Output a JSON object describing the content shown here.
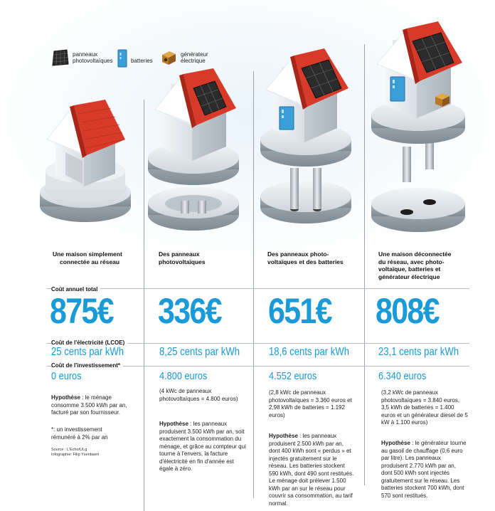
{
  "legend": [
    {
      "icon": "solar-panel-icon",
      "label_l1": "panneaux",
      "label_l2": "photovoltaïques"
    },
    {
      "icon": "battery-icon",
      "label_l1": "batteries",
      "label_l2": ""
    },
    {
      "icon": "generator-icon",
      "label_l1": "générateur",
      "label_l2": "électrique"
    }
  ],
  "labels": {
    "annual_cost": "Coût annuel total",
    "lcoe": "Coût de l'électricité (LCOE)",
    "investment": "Coût de l'investissement*"
  },
  "columns": [
    {
      "caption_l1": "Une maison simplement",
      "caption_l2": "connectée au réseau",
      "caption_l3": "",
      "caption_l4": "",
      "price": "875€",
      "lcoe": "25 cents par kWh",
      "investment": "0 euros",
      "detail": "",
      "hyp_label": "Hypothèse",
      "hyp_text": " : le ménage consomme 3.500 kWh par an, facturé par son fournisseur."
    },
    {
      "caption_l1": "Des panneaux",
      "caption_l2": "photovoltaïques",
      "caption_l3": "",
      "caption_l4": "",
      "price": "336€",
      "lcoe": "8,25 cents par kWh",
      "investment": "4.800 euros",
      "detail": "(4 kWc de panneaux photovoltaïques = 4.800 euros)",
      "hyp_label": "Hypothèse",
      "hyp_text": " : les panneaux produisent 3.500 kWh par an, soit exactement la consommation du ménage, et grâce au compteur qui tourne à l'envers, la facture d'électricité en fin d'année est égale à zéro."
    },
    {
      "caption_l1": "Des panneaux photo-",
      "caption_l2": "voltaïques et des batteries",
      "caption_l3": "",
      "caption_l4": "",
      "price": "651€",
      "lcoe": "18,6 cents par kWh",
      "investment": "4.552 euros",
      "detail": "(2,8 kWc de panneaux photovoltaïques = 3.360 euros et 2,98 kWh de batteries = 1.192 euros)",
      "hyp_label": "Hypothèse",
      "hyp_text": " : les panneaux produisent 2.500 kWh par an, dont 400 kWh sont « perdus » et injectés gratuitement sur le réseau. Les batteries stockent 590 kWh, dont 490 sont restitués. Le ménage doit prélever 1.500 kWh par an sur le réseau pour couvrir sa consommation, au tarif normal."
    },
    {
      "caption_l1": "Une maison déconnectée",
      "caption_l2": "du réseau, avec photo-",
      "caption_l3": "voltaïque, batteries et",
      "caption_l4": "générateur électrique",
      "price": "808€",
      "lcoe": "23,1 cents par kWh",
      "investment": "6.340 euros",
      "detail": "(3,2 kWc de panneaux photovoltaïques = 3.840 euros, 3,5 kWh de batteries = 1.400 euros et un générateur diesel de 5 kW à 1.100 euros)",
      "hyp_label": "Hypothèse",
      "hyp_text": " : le générateur tourne au gasoil de chauffage (0,6 euro par litre). Les panneaux produisent 2.770 kWh par an, dont 500 kWh sont injectés gratuitement sur le réseau. Les batteries stockent 700 kWh, dont 570 sont restitués."
    }
  ],
  "footnote": "*: un investissement rémunéré à 2% par an",
  "source_l1": "Source : L'Echo/ULg",
  "source_l2": "Infographie: Filip Ysenbaert",
  "colors": {
    "accent": "#1a9ad7",
    "roof": "#d83a2a",
    "battery": "#3a9fd8",
    "generator": "#c98a2a"
  }
}
